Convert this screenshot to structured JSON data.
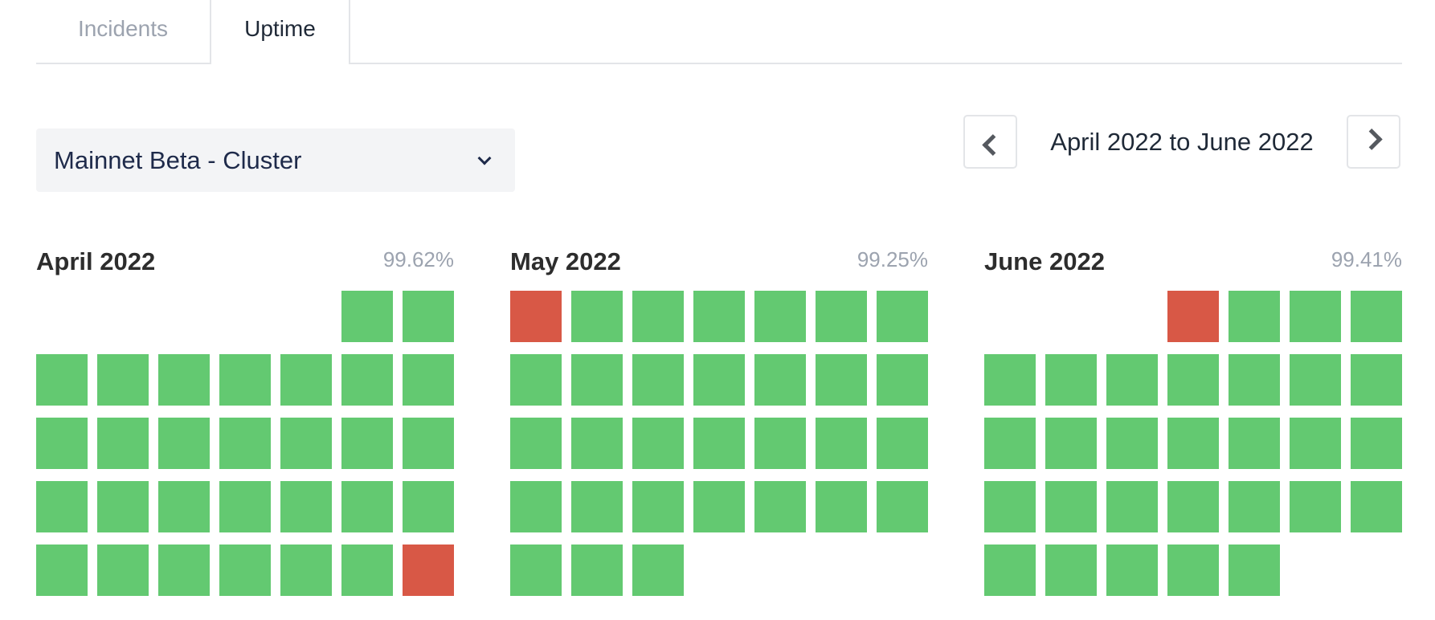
{
  "tabs": [
    {
      "label": "Incidents"
    },
    {
      "label": "Uptime"
    }
  ],
  "cluster_select": {
    "value": "Mainnet Beta - Cluster"
  },
  "date_range": "April 2022 to June 2022",
  "colors": {
    "up": "#63c971",
    "down": "#d85846"
  },
  "months": [
    {
      "name": "April 2022",
      "uptime": "99.62%",
      "lead_blanks": 5,
      "days": [
        "up",
        "up",
        "up",
        "up",
        "up",
        "up",
        "up",
        "up",
        "up",
        "up",
        "up",
        "up",
        "up",
        "up",
        "up",
        "up",
        "up",
        "up",
        "up",
        "up",
        "up",
        "up",
        "up",
        "up",
        "up",
        "up",
        "up",
        "up",
        "up",
        "down"
      ]
    },
    {
      "name": "May 2022",
      "uptime": "99.25%",
      "lead_blanks": 0,
      "days": [
        "down",
        "up",
        "up",
        "up",
        "up",
        "up",
        "up",
        "up",
        "up",
        "up",
        "up",
        "up",
        "up",
        "up",
        "up",
        "up",
        "up",
        "up",
        "up",
        "up",
        "up",
        "up",
        "up",
        "up",
        "up",
        "up",
        "up",
        "up",
        "up",
        "up",
        "up"
      ]
    },
    {
      "name": "June 2022",
      "uptime": "99.41%",
      "lead_blanks": 3,
      "days": [
        "down",
        "up",
        "up",
        "up",
        "up",
        "up",
        "up",
        "up",
        "up",
        "up",
        "up",
        "up",
        "up",
        "up",
        "up",
        "up",
        "up",
        "up",
        "up",
        "up",
        "up",
        "up",
        "up",
        "up",
        "up",
        "up",
        "up",
        "up",
        "up",
        "up"
      ]
    }
  ]
}
